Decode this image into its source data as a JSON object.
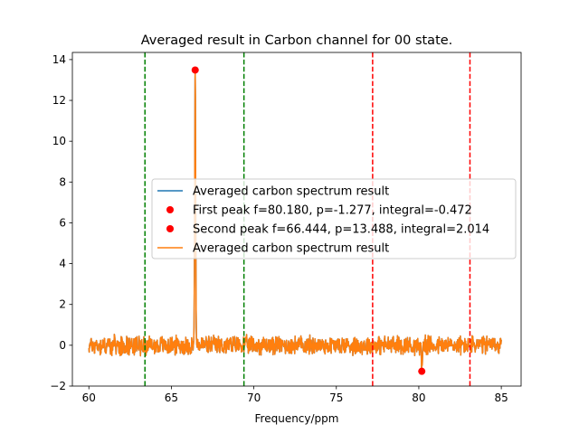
{
  "chart_data": {
    "type": "line",
    "title": "Averaged result in Carbon channel for 00 state.",
    "xlabel": "Frequency/ppm",
    "ylabel": "",
    "xlim": [
      59.0,
      86.2
    ],
    "ylim": [
      -2.0,
      14.35
    ],
    "xticks": [
      60,
      65,
      70,
      75,
      80,
      85
    ],
    "yticks": [
      -2,
      0,
      2,
      4,
      6,
      8,
      10,
      12,
      14
    ],
    "grid": false,
    "legend_position": "center-right",
    "series": [
      {
        "name": "Averaged carbon spectrum result",
        "kind": "line",
        "color": "#1f77b4",
        "x_range": [
          60.0,
          85.0
        ],
        "noise_amplitude": 0.45,
        "peaks": [
          {
            "x": 66.444,
            "y": 13.488
          },
          {
            "x": 80.18,
            "y": -1.277
          }
        ]
      },
      {
        "name": "Averaged carbon spectrum result",
        "kind": "line",
        "color": "#ff7f0e",
        "x_range": [
          60.0,
          85.0
        ],
        "noise_amplitude": 0.45,
        "peaks": [
          {
            "x": 66.444,
            "y": 13.488
          },
          {
            "x": 80.18,
            "y": -1.277
          }
        ]
      }
    ],
    "markers": [
      {
        "name": "First peak f=80.180, p=-1.277, integral=-0.472",
        "x": 80.18,
        "y": -1.277,
        "color": "#ff0000"
      },
      {
        "name": "Second peak f=66.444, p=13.488, integral=2.014",
        "x": 66.444,
        "y": 13.488,
        "color": "#ff0000"
      }
    ],
    "vlines": [
      {
        "x": 63.4,
        "color": "#008000"
      },
      {
        "x": 69.4,
        "color": "#008000"
      },
      {
        "x": 77.2,
        "color": "#ff0000"
      },
      {
        "x": 83.1,
        "color": "#ff0000"
      }
    ],
    "legend": [
      "Averaged carbon spectrum result",
      "First peak f=80.180, p=-1.277, integral=-0.472",
      "Second peak f=66.444, p=13.488, integral=2.014",
      "Averaged carbon spectrum result"
    ]
  }
}
